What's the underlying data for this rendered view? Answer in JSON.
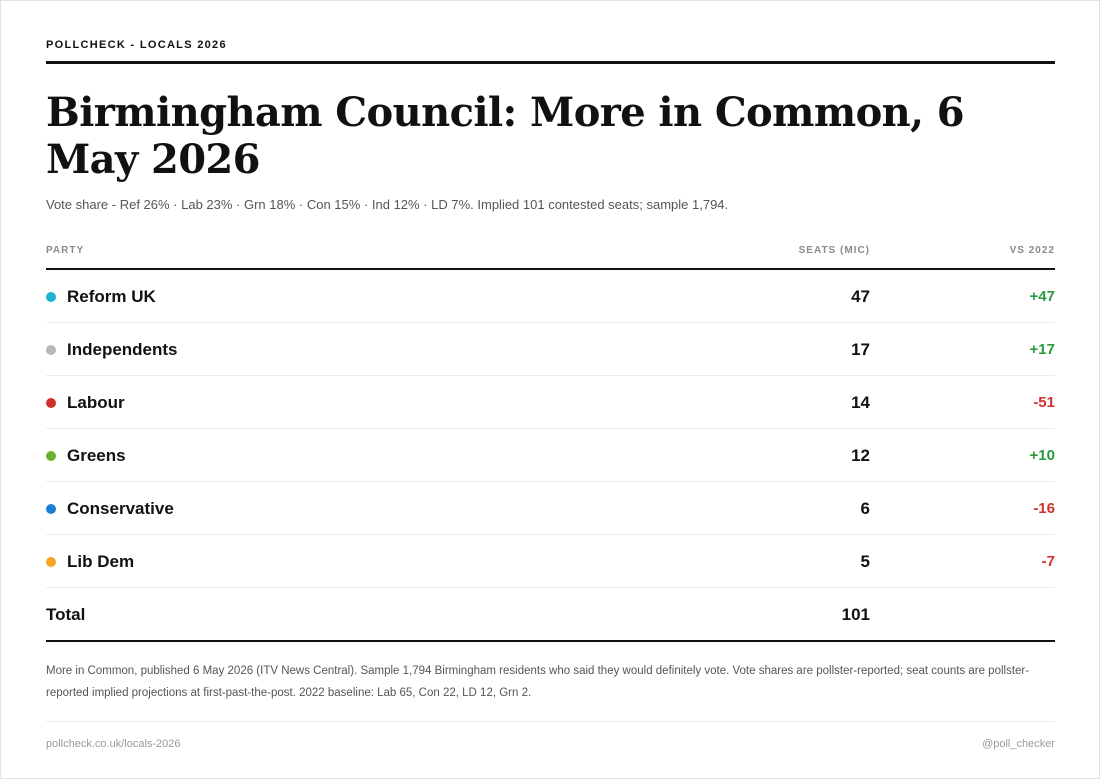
{
  "kicker": "POLLCHECK - LOCALS 2026",
  "title": "Birmingham Council: More in Common, 6 May 2026",
  "subtitle": "Vote share - Ref 26% · Lab 23% · Grn 18% · Con 15% · Ind 12% · LD 7%. Implied 101 contested seats; sample 1,794.",
  "table": {
    "headers": {
      "party": "PARTY",
      "seats": "SEATS (MIC)",
      "vs": "VS 2022"
    },
    "rows": [
      {
        "party": "Reform UK",
        "seats": "47",
        "change": "+47",
        "color": "#1fb3d1",
        "direction": "pos"
      },
      {
        "party": "Independents",
        "seats": "17",
        "change": "+17",
        "color": "#b8b8b8",
        "direction": "pos"
      },
      {
        "party": "Labour",
        "seats": "14",
        "change": "-51",
        "color": "#d0312d",
        "direction": "neg"
      },
      {
        "party": "Greens",
        "seats": "12",
        "change": "+10",
        "color": "#6ab22e",
        "direction": "pos"
      },
      {
        "party": "Conservative",
        "seats": "6",
        "change": "-16",
        "color": "#1a7fd4",
        "direction": "neg"
      },
      {
        "party": "Lib Dem",
        "seats": "5",
        "change": "-7",
        "color": "#f5a623",
        "direction": "neg"
      }
    ],
    "total": {
      "label": "Total",
      "value": "101"
    }
  },
  "notes": "More in Common, published 6 May 2026 (ITV News Central). Sample 1,794 Birmingham residents who said they would definitely vote. Vote shares are pollster-reported; seat counts are pollster-reported implied projections at first-past-the-post. 2022 baseline: Lab 65, Con 22, LD 12, Grn 2.",
  "footer": {
    "url": "pollcheck.co.uk/locals-2026",
    "handle": "@poll_checker"
  }
}
